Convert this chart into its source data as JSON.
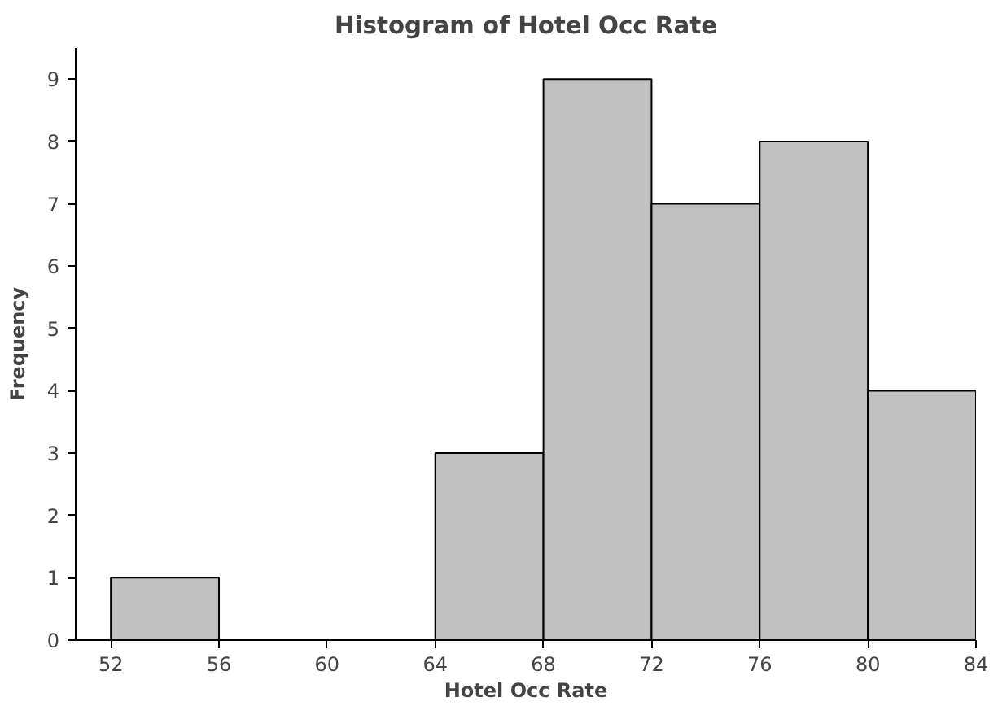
{
  "chart_data": {
    "type": "histogram",
    "title": "Histogram of Hotel Occ Rate",
    "xlabel": "Hotel Occ Rate",
    "ylabel": "Frequency",
    "bins": [
      52,
      56,
      60,
      64,
      68,
      72,
      76,
      80,
      84
    ],
    "values": [
      1,
      0,
      0,
      3,
      9,
      7,
      8,
      4
    ],
    "color": "#c0c0c0",
    "xlim": [
      50.7,
      84
    ],
    "ylim": [
      0,
      9.5
    ],
    "xticks": [
      52,
      56,
      60,
      64,
      68,
      72,
      76,
      80,
      84
    ],
    "yticks": [
      0,
      1,
      2,
      3,
      4,
      5,
      6,
      7,
      8,
      9
    ],
    "grid": false
  }
}
